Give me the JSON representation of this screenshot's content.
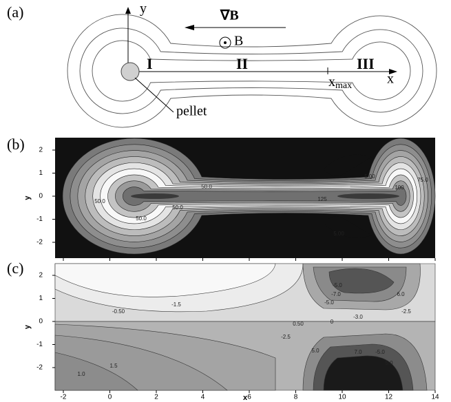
{
  "panel_a": {
    "label": "(a)",
    "axis_y": "y",
    "grad_b": "∇B",
    "b_field": "B",
    "regions": [
      "I",
      "II",
      "III"
    ],
    "x_max": {
      "base": "x",
      "sub": "max"
    },
    "axis_x": "x",
    "pellet": "pellet"
  },
  "panel_b": {
    "label": "(b)",
    "y_label": "y",
    "yticks": [
      2,
      1,
      0,
      -1,
      -2
    ],
    "contour_labels": [
      "50.0",
      "50.0",
      "50.0",
      "50.0",
      "5.00",
      "100",
      "125",
      "75.0",
      "5.00"
    ]
  },
  "panel_c": {
    "label": "(c)",
    "y_label": "y",
    "x_label": "x",
    "yticks": [
      2,
      1,
      0,
      -1,
      -2
    ],
    "xticks": [
      -2,
      0,
      2,
      4,
      6,
      8,
      10,
      12,
      14
    ],
    "contour_labels": [
      "-0.50",
      "-1.5",
      "-5.0",
      "-7.0",
      "-5.0",
      "6.0",
      "-3.0",
      "-2.5",
      "0.50",
      "0",
      "-2.5",
      "5.0",
      "7.0",
      "-5.0",
      "5.0",
      "1.5",
      "1.0"
    ]
  }
}
